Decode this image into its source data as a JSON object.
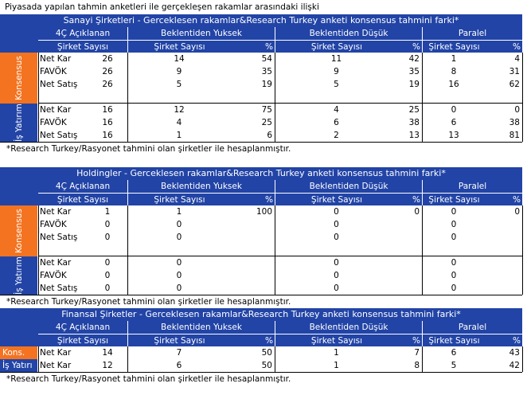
{
  "title": "Piyasada yapılan tahmin anketleri ile gerçekleşen rakamlar arasındaki ilişki",
  "tables": [
    {
      "header": "Sanayi Şirketleri - Gerceklesen rakamlar&Research Turkey anketi konsensus tahmini farki*",
      "columns": [
        "4Ç Açıklanan",
        "Beklentiden Yuksek",
        "Beklentiden Düşük",
        "Paralel"
      ],
      "subcolumns": [
        "Şirket Sayısı",
        "Şirket Sayısı",
        "%",
        "Şirket Sayısı",
        "%",
        "Şirket Sayısı",
        "%"
      ],
      "groups": [
        {
          "label": "Konsensus",
          "rows": [
            {
              "label": "Net Kar",
              "values": [
                26,
                14,
                54,
                11,
                42,
                1,
                4
              ]
            },
            {
              "label": "FAVÖK",
              "values": [
                26,
                9,
                35,
                9,
                35,
                8,
                31
              ]
            },
            {
              "label": "Net Satış",
              "values": [
                26,
                5,
                19,
                5,
                19,
                16,
                62
              ]
            }
          ]
        },
        {
          "label": "İş Yatırım",
          "rows": [
            {
              "label": "Net Kar",
              "values": [
                16,
                12,
                75,
                4,
                25,
                0,
                0
              ]
            },
            {
              "label": "FAVÖK",
              "values": [
                16,
                4,
                25,
                6,
                38,
                6,
                38
              ]
            },
            {
              "label": "Net Satış",
              "values": [
                16,
                1,
                6,
                2,
                13,
                13,
                81
              ]
            }
          ]
        }
      ],
      "footnote": "*Research Turkey/Rasyonet  tahmini olan şirketler ile hesaplanmıştır."
    },
    {
      "header": "Holdingler - Gerceklesen rakamlar&Research Turkey anketi konsensus tahmini farki*",
      "columns": [
        "4Ç Açıklanan",
        "Beklentiden Yuksek",
        "Beklentiden Düşük",
        "Paralel"
      ],
      "subcolumns": [
        "Şirket Sayısı",
        "Şirket Sayısı",
        "%",
        "Şirket Sayısı",
        "%",
        "Şirket Sayısı",
        "%"
      ],
      "groups": [
        {
          "label": "Konsensus",
          "rows": [
            {
              "label": "Net Kar",
              "values": [
                1,
                1,
                100,
                0,
                0,
                0,
                0
              ]
            },
            {
              "label": "FAVÖK",
              "values": [
                0,
                0,
                null,
                0,
                null,
                0,
                null
              ]
            },
            {
              "label": "Net Satış",
              "values": [
                0,
                0,
                null,
                0,
                null,
                0,
                null
              ]
            }
          ]
        },
        {
          "label": "İş Yatırım",
          "rows": [
            {
              "label": "Net Kar",
              "values": [
                0,
                0,
                null,
                0,
                null,
                0,
                null
              ]
            },
            {
              "label": "FAVÖK",
              "values": [
                0,
                0,
                null,
                0,
                null,
                0,
                null
              ]
            },
            {
              "label": "Net Satış",
              "values": [
                0,
                0,
                null,
                0,
                null,
                0,
                null
              ]
            }
          ]
        }
      ],
      "footnote": "*Research Turkey/Rasyonet  tahmini olan şirketler ile hesaplanmıştır."
    },
    {
      "header": "Finansal Şirketler - Gerceklesen rakamlar&Research Turkey anketi konsensus tahmini farki*",
      "columns": [
        "4Ç Açıklanan",
        "Beklentiden Yuksek",
        "Beklentiden Düşük",
        "Paralel"
      ],
      "subcolumns": [
        "Şirket Sayısı",
        "Şirket Sayısı",
        "%",
        "Şirket Sayısı",
        "%",
        "Şirket Sayısı",
        "%"
      ],
      "groups": [
        {
          "label": "Kons.",
          "rows": [
            {
              "label": "Net Kar",
              "values": [
                14,
                7,
                50,
                1,
                7,
                6,
                43
              ]
            }
          ]
        },
        {
          "label": "İş Yatırı",
          "rows": [
            {
              "label": "Net Kar",
              "values": [
                12,
                6,
                50,
                1,
                8,
                5,
                42
              ]
            }
          ]
        }
      ],
      "footnote": "*Research Turkey/Rasyonet  tahmini olan şirketler ile hesaplanmıştır."
    }
  ]
}
